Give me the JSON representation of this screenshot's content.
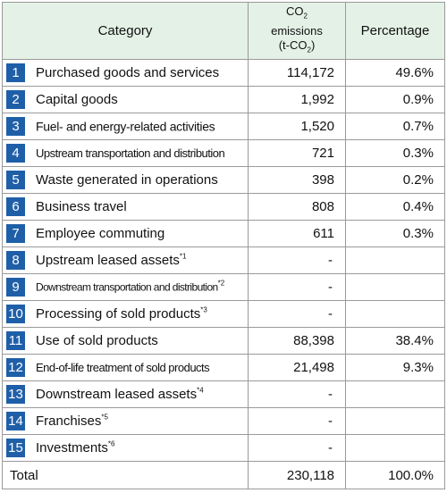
{
  "header": {
    "category": "Category",
    "emissions": [
      "CO",
      "2",
      "emissions",
      "(t-CO",
      "2",
      ")"
    ],
    "percentage": "Percentage"
  },
  "rows": [
    {
      "number": "1",
      "name": "Purchased goods and services",
      "emissions": "114,172",
      "percentage": "49.6%"
    },
    {
      "number": "2",
      "name": "Capital goods",
      "emissions": "1,992",
      "percentage": "0.9%"
    },
    {
      "number": "3",
      "name": "Fuel- and energy-related activities",
      "emissions": "1,520",
      "percentage": "0.7%"
    },
    {
      "number": "4",
      "name": "Upstream transportation and distribution",
      "emissions": "721",
      "percentage": "0.3%"
    },
    {
      "number": "5",
      "name": "Waste generated in operations",
      "emissions": "398",
      "percentage": "0.2%"
    },
    {
      "number": "6",
      "name": "Business travel",
      "emissions": "808",
      "percentage": "0.4%"
    },
    {
      "number": "7",
      "name": "Employee commuting",
      "emissions": "611",
      "percentage": "0.3%"
    },
    {
      "number": "8",
      "name": "Upstream leased assets",
      "note": "*1",
      "emissions": "-"
    },
    {
      "number": "9",
      "name": "Downstream transportation and distribution",
      "note": "*2",
      "emissions": "-"
    },
    {
      "number": "10",
      "name": "Processing of sold products",
      "note": "*3",
      "emissions": "-"
    },
    {
      "number": "11",
      "name": "Use of sold products",
      "emissions": "88,398",
      "percentage": "38.4%"
    },
    {
      "number": "12",
      "name": "End-of-life treatment of sold products",
      "emissions": "21,498",
      "percentage": "9.3%"
    },
    {
      "number": "13",
      "name": "Downstream leased assets",
      "note": "*4",
      "emissions": "-"
    },
    {
      "number": "14",
      "name": "Franchises",
      "note": "*5",
      "emissions": "-"
    },
    {
      "number": "15",
      "name": "Investments",
      "note": "*6",
      "emissions": "-"
    }
  ],
  "total": {
    "label": "Total",
    "emissions": "230,118",
    "percentage": "100.0%"
  }
}
